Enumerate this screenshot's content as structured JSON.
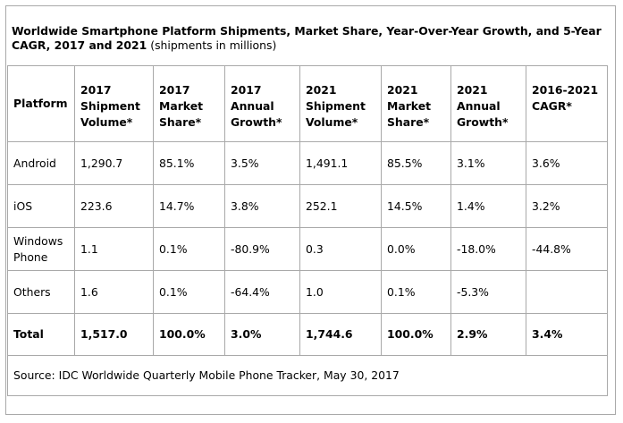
{
  "title": {
    "bold": "Worldwide Smartphone Platform Shipments, Market Share, Year-Over-Year Growth, and 5-Year CAGR, 2017 and 2021",
    "normal": " (shipments in millions)"
  },
  "headers": [
    "Platform",
    "2017 Shipment Volume*",
    "2017 Market Share*",
    "2017 Annual Growth*",
    "2021 Shipment Volume*",
    "2021 Market Share*",
    "2021 Annual Growth*",
    "2016-2021 CAGR*"
  ],
  "rows": [
    [
      "Android",
      "1,290.7",
      "85.1%",
      "3.5%",
      "1,491.1",
      "85.5%",
      "3.1%",
      "3.6%"
    ],
    [
      "iOS",
      "223.6",
      "14.7%",
      "3.8%",
      "252.1",
      "14.5%",
      "1.4%",
      "3.2%"
    ],
    [
      "Windows Phone",
      "1.1",
      "0.1%",
      "-80.9%",
      "0.3",
      "0.0%",
      "-18.0%",
      "-44.8%"
    ],
    [
      "Others",
      "1.6",
      "0.1%",
      "-64.4%",
      "1.0",
      "0.1%",
      "-5.3%",
      ""
    ],
    [
      "Total",
      "1,517.0",
      "100.0%",
      "3.0%",
      "1,744.6",
      "100.0%",
      "2.9%",
      "3.4%"
    ]
  ],
  "source": "Source: IDC Worldwide Quarterly Mobile Phone Tracker, May 30, 2017",
  "colors": {
    "border": "#a9a9a9",
    "text": "#000000",
    "background": "#ffffff"
  }
}
